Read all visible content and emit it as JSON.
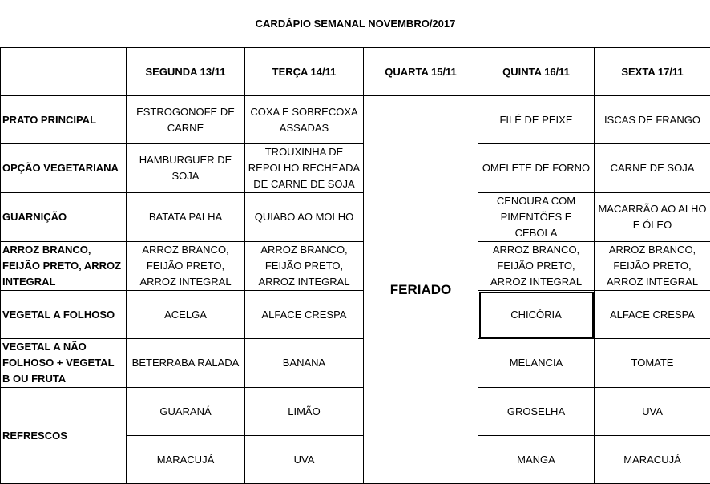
{
  "title": "CARDÁPIO SEMANAL NOVEMBRO/2017",
  "days": [
    "SEGUNDA   13/11",
    "TERÇA 14/11",
    "QUARTA 15/11",
    "QUINTA 16/11",
    "SEXTA 17/11"
  ],
  "holiday": "FERIADO",
  "rows": [
    {
      "label": "PRATO PRINCIPAL",
      "mon": "ESTROGONOFE DE CARNE",
      "tue": "COXA E SOBRECOXA ASSADAS",
      "thu": "FILÉ DE PEIXE",
      "fri": "ISCAS DE FRANGO"
    },
    {
      "label": "OPÇÃO VEGETARIANA",
      "mon": "HAMBURGUER DE SOJA",
      "tue": "TROUXINHA DE REPOLHO RECHEADA DE CARNE DE SOJA",
      "thu": "OMELETE DE FORNO",
      "fri": "CARNE DE SOJA"
    },
    {
      "label": "GUARNIÇÃO",
      "mon": "BATATA PALHA",
      "tue": "QUIABO AO MOLHO",
      "thu": "CENOURA COM PIMENTÕES E CEBOLA",
      "fri": "MACARRÃO AO ALHO E ÓLEO"
    },
    {
      "label": "ARROZ BRANCO, FEIJÃO PRETO, ARROZ INTEGRAL",
      "mon": "ARROZ BRANCO, FEIJÃO PRETO, ARROZ INTEGRAL",
      "tue": "ARROZ BRANCO, FEIJÃO PRETO, ARROZ INTEGRAL",
      "thu": "ARROZ BRANCO, FEIJÃO PRETO, ARROZ INTEGRAL",
      "fri": "ARROZ BRANCO, FEIJÃO PRETO, ARROZ INTEGRAL"
    },
    {
      "label": "VEGETAL A FOLHOSO",
      "mon": "ACELGA",
      "tue": "ALFACE CRESPA",
      "thu": "CHICÓRIA",
      "fri": "ALFACE CRESPA"
    },
    {
      "label": "VEGETAL A NÃO FOLHOSO + VEGETAL B OU FRUTA",
      "mon": "BETERRABA RALADA",
      "tue": "BANANA",
      "thu": "MELANCIA",
      "fri": "TOMATE"
    }
  ],
  "drinks": {
    "label": "REFRESCOS",
    "rows": [
      {
        "mon": "GUARANÁ",
        "tue": "LIMÃO",
        "thu": "GROSELHA",
        "fri": "UVA"
      },
      {
        "mon": "MARACUJÁ",
        "tue": "UVA",
        "thu": "MANGA",
        "fri": "MARACUJÁ"
      }
    ]
  }
}
